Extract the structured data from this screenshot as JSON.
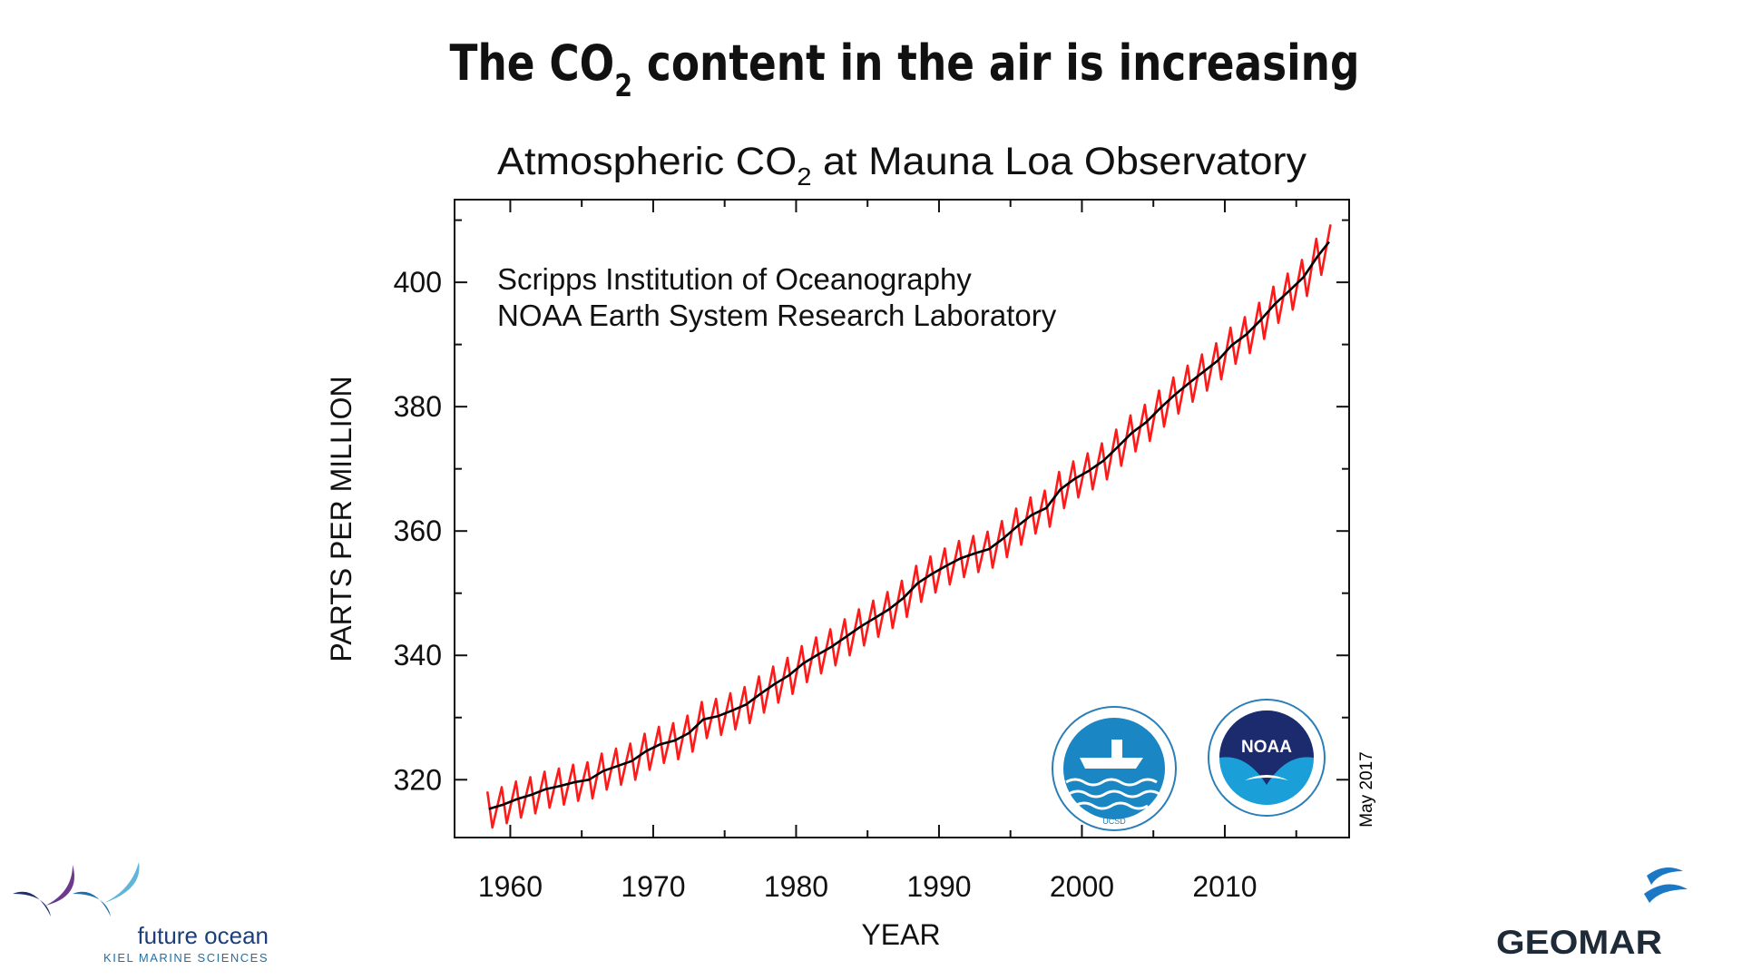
{
  "slide_title": [
    "The CO",
    "2",
    " content in the air is increasing"
  ],
  "chart_data": {
    "type": "line",
    "title": [
      "Atmospheric CO",
      "2",
      " at Mauna Loa Observatory"
    ],
    "annotations": [
      "Scripps Institution of Oceanography",
      "NOAA Earth System Research Laboratory"
    ],
    "date_note": "May 2017",
    "xlabel": "YEAR",
    "ylabel": "PARTS PER MILLION",
    "xlim": [
      1956.1,
      2018.7
    ],
    "ylim": [
      310.7,
      413.3
    ],
    "xticks": [
      1960,
      1970,
      1980,
      1990,
      2000,
      2010
    ],
    "xminor": [
      1965,
      1975,
      1985,
      1995,
      2005,
      2015
    ],
    "yticks": [
      320,
      340,
      360,
      380,
      400
    ],
    "yminor": [
      330,
      350,
      370,
      390,
      410
    ],
    "series": [
      {
        "color": "#ff1a1a",
        "x": [
          1958.4,
          1958.75,
          1959.4,
          1959.75,
          1960.4,
          1960.75,
          1961.4,
          1961.75,
          1962.4,
          1962.75,
          1963.4,
          1963.75,
          1964.4,
          1964.75,
          1965.4,
          1965.75,
          1966.4,
          1966.75,
          1967.4,
          1967.75,
          1968.4,
          1968.75,
          1969.4,
          1969.75,
          1970.4,
          1970.75,
          1971.4,
          1971.75,
          1972.4,
          1972.75,
          1973.4,
          1973.75,
          1974.4,
          1974.75,
          1975.4,
          1975.75,
          1976.4,
          1976.75,
          1977.4,
          1977.75,
          1978.4,
          1978.75,
          1979.4,
          1979.75,
          1980.4,
          1980.75,
          1981.4,
          1981.75,
          1982.4,
          1982.75,
          1983.4,
          1983.75,
          1984.4,
          1984.75,
          1985.4,
          1985.75,
          1986.4,
          1986.75,
          1987.4,
          1987.75,
          1988.4,
          1988.75,
          1989.4,
          1989.75,
          1990.4,
          1990.75,
          1991.4,
          1991.75,
          1992.4,
          1992.75,
          1993.4,
          1993.75,
          1994.4,
          1994.75,
          1995.4,
          1995.75,
          1996.4,
          1996.75,
          1997.4,
          1997.75,
          1998.4,
          1998.75,
          1999.4,
          1999.75,
          2000.4,
          2000.75,
          2001.4,
          2001.75,
          2002.4,
          2002.75,
          2003.4,
          2003.75,
          2004.4,
          2004.75,
          2005.4,
          2005.75,
          2006.4,
          2006.75,
          2007.4,
          2007.75,
          2008.4,
          2008.75,
          2009.4,
          2009.75,
          2010.4,
          2010.75,
          2011.4,
          2011.75,
          2012.4,
          2012.75,
          2013.4,
          2013.75,
          2014.4,
          2014.75,
          2015.4,
          2015.75,
          2016.4,
          2016.75,
          2017.4
        ],
        "values": [
          318.1,
          312.3,
          318.8,
          313.0,
          319.7,
          313.9,
          320.4,
          314.6,
          321.3,
          315.5,
          321.8,
          316.0,
          322.4,
          316.6,
          322.8,
          317.0,
          324.2,
          318.4,
          325.0,
          319.2,
          325.8,
          320.0,
          327.4,
          321.6,
          328.5,
          322.7,
          329.1,
          323.3,
          330.3,
          324.5,
          332.5,
          326.7,
          333.0,
          327.2,
          333.9,
          328.1,
          334.9,
          329.1,
          336.6,
          330.8,
          338.2,
          332.4,
          339.6,
          333.8,
          341.5,
          335.7,
          342.9,
          337.1,
          344.2,
          338.4,
          345.8,
          340.0,
          347.4,
          341.6,
          348.8,
          343.0,
          350.2,
          344.4,
          352.0,
          346.2,
          354.4,
          348.6,
          355.9,
          350.1,
          357.2,
          351.4,
          358.4,
          352.6,
          359.2,
          353.4,
          359.9,
          354.1,
          361.6,
          355.8,
          363.6,
          357.8,
          365.4,
          359.6,
          366.5,
          360.7,
          369.5,
          363.7,
          371.2,
          365.4,
          372.5,
          366.7,
          374.1,
          368.3,
          376.3,
          370.5,
          378.6,
          372.8,
          380.3,
          374.5,
          382.6,
          376.8,
          384.7,
          378.9,
          386.6,
          380.8,
          388.4,
          382.6,
          390.2,
          384.4,
          392.7,
          386.9,
          394.4,
          388.6,
          396.7,
          390.9,
          399.3,
          393.5,
          401.4,
          395.6,
          403.6,
          397.8,
          407.0,
          401.2,
          409.3
        ]
      },
      {
        "color": "#000000",
        "x": [
          1958.5,
          1959.5,
          1960.5,
          1961.5,
          1962.5,
          1963.5,
          1964.5,
          1965.5,
          1966.5,
          1967.5,
          1968.5,
          1969.5,
          1970.5,
          1971.5,
          1972.5,
          1973.5,
          1974.5,
          1975.5,
          1976.5,
          1977.5,
          1978.5,
          1979.5,
          1980.5,
          1981.5,
          1982.5,
          1983.5,
          1984.5,
          1985.5,
          1986.5,
          1987.5,
          1988.5,
          1989.5,
          1990.5,
          1991.5,
          1992.5,
          1993.5,
          1994.5,
          1995.5,
          1996.5,
          1997.5,
          1998.5,
          1999.5,
          2000.5,
          2001.5,
          2002.5,
          2003.5,
          2004.5,
          2005.5,
          2006.5,
          2007.5,
          2008.5,
          2009.5,
          2010.5,
          2011.5,
          2012.5,
          2013.5,
          2014.5,
          2015.5,
          2016.5,
          2017.3
        ],
        "values": [
          315.3,
          316.0,
          316.9,
          317.6,
          318.5,
          319.0,
          319.6,
          320.0,
          321.4,
          322.2,
          323.0,
          324.6,
          325.7,
          326.3,
          327.5,
          329.7,
          330.2,
          331.1,
          332.1,
          333.8,
          335.4,
          336.8,
          338.7,
          340.1,
          341.4,
          343.0,
          344.6,
          346.0,
          347.4,
          349.2,
          351.6,
          353.1,
          354.4,
          355.6,
          356.4,
          357.1,
          358.8,
          360.8,
          362.6,
          363.7,
          366.7,
          368.4,
          369.7,
          371.3,
          373.5,
          375.8,
          377.5,
          379.8,
          381.9,
          383.8,
          385.6,
          387.4,
          389.9,
          391.6,
          393.9,
          396.5,
          398.6,
          400.8,
          404.2,
          406.5
        ]
      }
    ]
  },
  "logos": {
    "scripps": "UCSD",
    "noaa": "NOAA",
    "future_ocean": "future ocean",
    "kiel": "KIEL MARINE SCIENCES",
    "geomar": "GEOMAR"
  }
}
